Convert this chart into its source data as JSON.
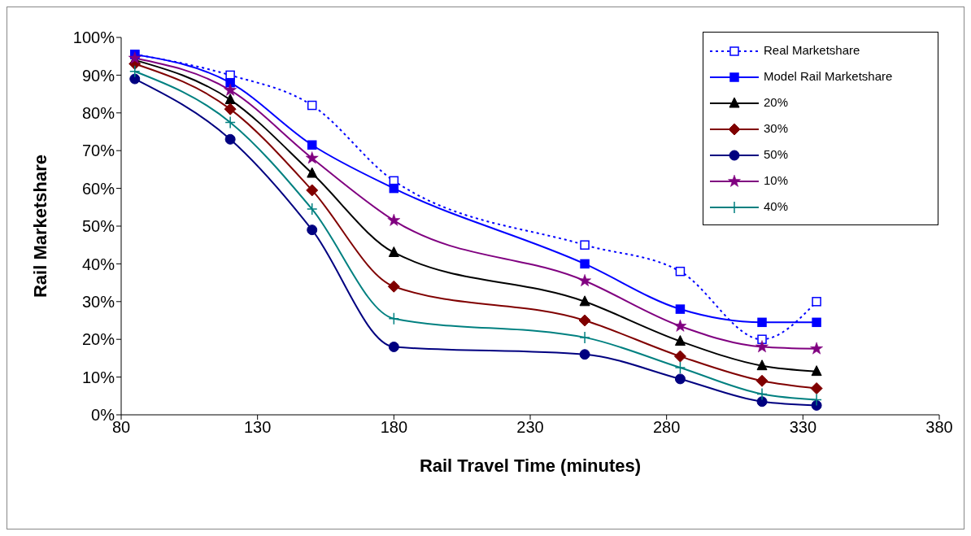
{
  "chart_data": {
    "type": "line",
    "xlabel": "Rail Travel Time (minutes)",
    "ylabel": "Rail Marketshare",
    "x": [
      85,
      120,
      150,
      180,
      250,
      285,
      315,
      335
    ],
    "xlim": [
      80,
      380
    ],
    "xticks": [
      80,
      130,
      180,
      230,
      280,
      330,
      380
    ],
    "ylim": [
      0,
      100
    ],
    "yticks": [
      {
        "value": 0,
        "label": "0%"
      },
      {
        "value": 10,
        "label": "10%"
      },
      {
        "value": 20,
        "label": "20%"
      },
      {
        "value": 30,
        "label": "30%"
      },
      {
        "value": 40,
        "label": "40%"
      },
      {
        "value": 50,
        "label": "50%"
      },
      {
        "value": 60,
        "label": "60%"
      },
      {
        "value": 70,
        "label": "70%"
      },
      {
        "value": 80,
        "label": "80%"
      },
      {
        "value": 90,
        "label": "90%"
      },
      {
        "value": 100,
        "label": "100%"
      }
    ],
    "grid": false,
    "legend": "top right",
    "series": [
      {
        "name": "Real Marketshare",
        "color": "#0000ff",
        "marker": "square",
        "line_style": "dotted",
        "values": [
          95.5,
          90,
          82,
          62,
          45,
          38,
          20,
          30
        ]
      },
      {
        "name": "Model Rail Marketshare",
        "color": "#0000ff",
        "marker": "square",
        "line_style": "solid",
        "values": [
          95.5,
          88,
          71.5,
          60,
          40,
          28,
          24.5,
          24.5
        ]
      },
      {
        "name": "20%",
        "color": "#000000",
        "marker": "triangle",
        "line_style": "solid",
        "values": [
          94,
          83.5,
          64,
          43,
          30,
          19.5,
          13,
          11.5
        ]
      },
      {
        "name": "30%",
        "color": "#800000",
        "marker": "diamond",
        "line_style": "solid",
        "values": [
          93,
          81,
          59.5,
          34,
          25,
          15.5,
          9,
          7
        ]
      },
      {
        "name": "50%",
        "color": "#000080",
        "marker": "circle",
        "line_style": "solid",
        "values": [
          89,
          73,
          49,
          18,
          16,
          9.5,
          3.5,
          2.5
        ]
      },
      {
        "name": "10%",
        "color": "#800080",
        "marker": "star",
        "line_style": "solid",
        "values": [
          94.5,
          86,
          68,
          51.5,
          35.5,
          23.5,
          18,
          17.5
        ]
      },
      {
        "name": "40%",
        "color": "#008080",
        "marker": "cross",
        "line_style": "solid",
        "values": [
          91,
          77.5,
          54.5,
          25.5,
          20.5,
          12.5,
          5.5,
          4
        ]
      }
    ]
  }
}
